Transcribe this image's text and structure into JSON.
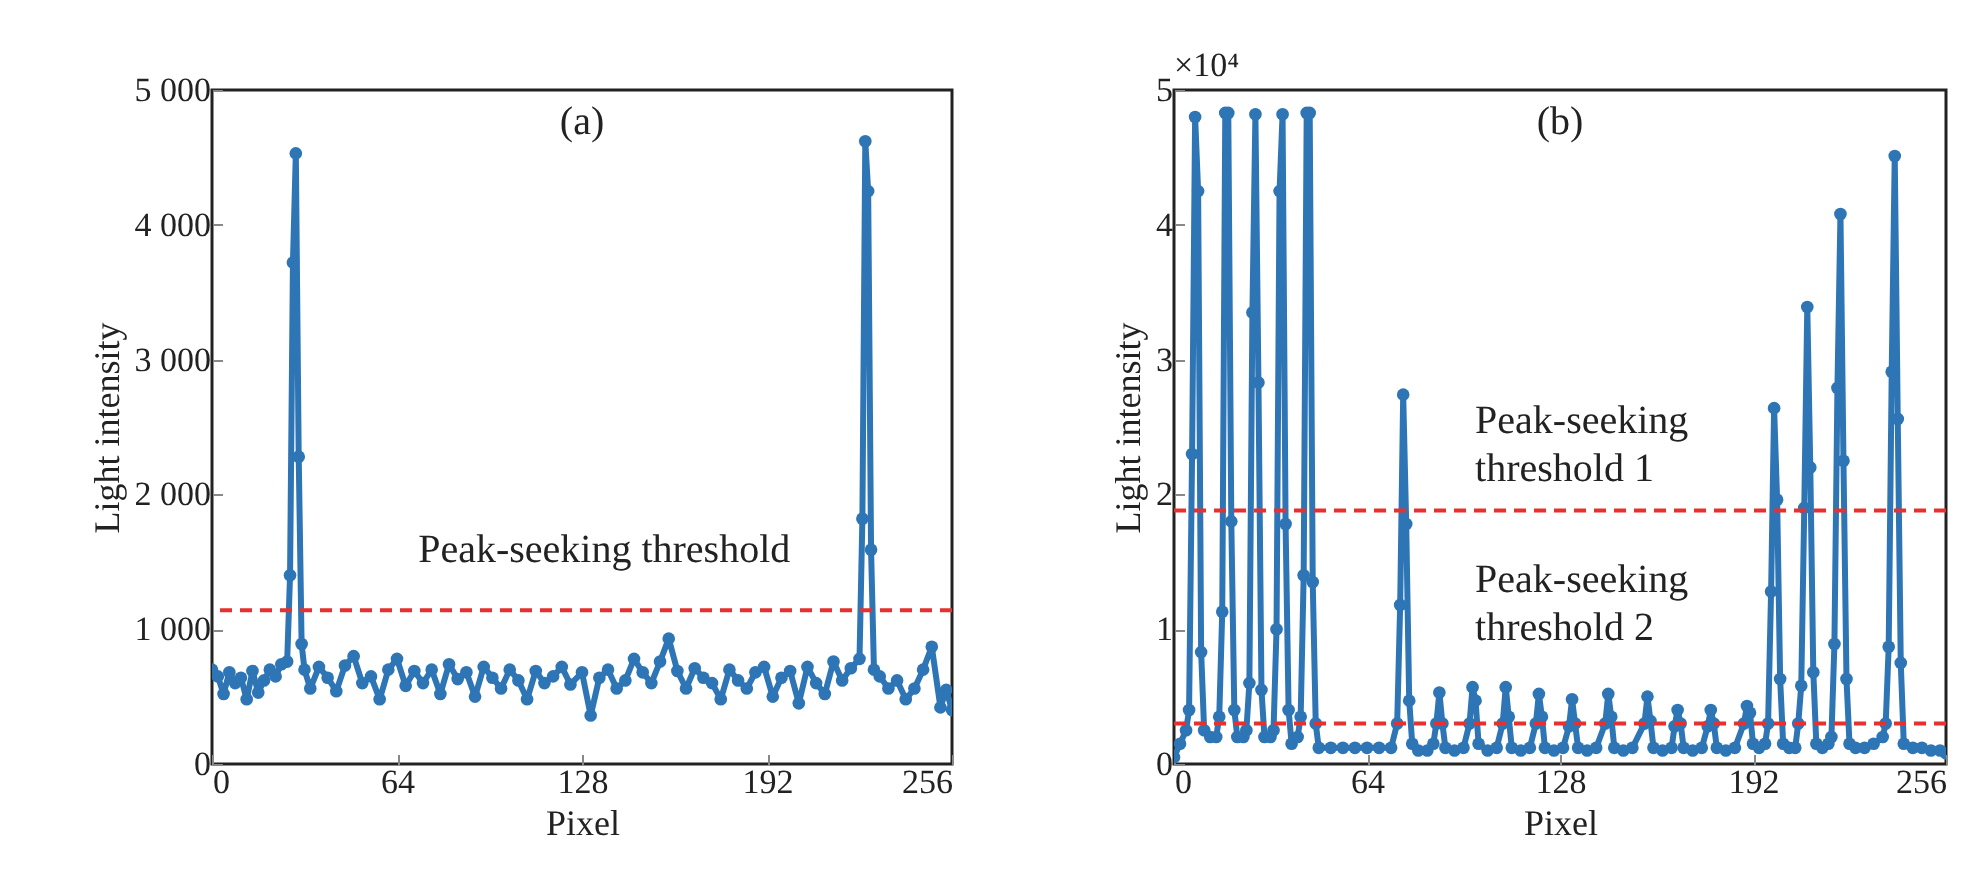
{
  "chart_data": [
    {
      "type": "line",
      "title": "(a)",
      "xlabel": "Pixel",
      "ylabel": "Light intensity",
      "marker": "circle",
      "line_style": "solid",
      "xlim": [
        0,
        256
      ],
      "xticks": [
        0,
        64,
        128,
        192,
        256
      ],
      "ylim": [
        0,
        5000
      ],
      "yticks": [
        0,
        {
          "value": 1000,
          "label": "1 000"
        },
        {
          "value": 2000,
          "label": "2 000"
        },
        {
          "value": 3000,
          "label": "3 000"
        },
        {
          "value": 4000,
          "label": "4 000"
        },
        {
          "value": 5000,
          "label": "5 000"
        }
      ],
      "series": [
        {
          "color": "#2e75b6",
          "x": [
            0,
            2,
            4,
            6,
            8,
            10,
            12,
            14,
            16,
            18,
            20,
            22,
            24,
            26,
            27,
            28,
            29,
            30,
            31,
            32,
            34,
            37,
            40,
            43,
            46,
            49,
            52,
            55,
            58,
            61,
            64,
            67,
            70,
            73,
            76,
            79,
            82,
            85,
            88,
            91,
            94,
            97,
            100,
            103,
            106,
            109,
            112,
            115,
            118,
            121,
            124,
            128,
            131,
            134,
            137,
            140,
            143,
            146,
            149,
            152,
            155,
            158,
            161,
            164,
            167,
            170,
            173,
            176,
            179,
            182,
            185,
            188,
            191,
            194,
            197,
            200,
            203,
            206,
            209,
            212,
            215,
            218,
            221,
            224,
            225,
            226,
            227,
            228,
            229,
            231,
            234,
            237,
            240,
            243,
            246,
            249,
            252,
            254,
            256
          ],
          "values": [
            700,
            650,
            520,
            680,
            600,
            640,
            480,
            690,
            530,
            620,
            700,
            650,
            740,
            760,
            1400,
            3720,
            4530,
            2280,
            890,
            700,
            560,
            720,
            640,
            540,
            730,
            800,
            600,
            650,
            480,
            700,
            780,
            580,
            690,
            600,
            700,
            520,
            740,
            630,
            680,
            500,
            720,
            640,
            560,
            700,
            620,
            480,
            690,
            600,
            650,
            720,
            590,
            680,
            360,
            640,
            700,
            560,
            620,
            780,
            680,
            600,
            760,
            930,
            690,
            560,
            710,
            640,
            600,
            480,
            700,
            620,
            560,
            680,
            720,
            500,
            640,
            690,
            450,
            720,
            600,
            520,
            760,
            620,
            710,
            780,
            1820,
            4620,
            4250,
            1590,
            700,
            650,
            560,
            620,
            480,
            560,
            700,
            870,
            420,
            550,
            400
          ]
        }
      ],
      "ref_lines": [
        {
          "axis": "y",
          "value": 1140,
          "label": "Peak-seeking threshold",
          "color": "#e8312f",
          "line_style": "dashed"
        }
      ]
    },
    {
      "type": "line",
      "title": "(b)",
      "xlabel": "Pixel",
      "ylabel": "Light intensity",
      "marker": "circle",
      "line_style": "solid",
      "annotations": [
        "×10⁴"
      ],
      "xlim": [
        0,
        256
      ],
      "xticks": [
        0,
        64,
        128,
        192,
        256
      ],
      "ylim": [
        0,
        5
      ],
      "yticks": [
        0,
        1,
        2,
        3,
        4,
        5
      ],
      "series": [
        {
          "color": "#2e75b6",
          "x": [
            0,
            2,
            4,
            5,
            6,
            7,
            8,
            9,
            10,
            12,
            14,
            15,
            16,
            17,
            18,
            19,
            20,
            21,
            23,
            24,
            25,
            26,
            27,
            28,
            29,
            30,
            32,
            33,
            34,
            35,
            36,
            37,
            38,
            39,
            41,
            42,
            43,
            44,
            45,
            46,
            47,
            48,
            52,
            56,
            60,
            64,
            68,
            72,
            74,
            75,
            76,
            77,
            78,
            79,
            81,
            84,
            86,
            87,
            88,
            89,
            90,
            93,
            96,
            98,
            99,
            100,
            101,
            104,
            107,
            109,
            110,
            111,
            112,
            115,
            118,
            120,
            121,
            122,
            123,
            126,
            129,
            131,
            132,
            133,
            134,
            137,
            140,
            143,
            144,
            145,
            146,
            149,
            152,
            156,
            157,
            158,
            159,
            162,
            165,
            166,
            167,
            168,
            169,
            172,
            175,
            177,
            178,
            179,
            180,
            183,
            186,
            189,
            190,
            191,
            192,
            194,
            196,
            197,
            198,
            199,
            200,
            201,
            202,
            204,
            206,
            207,
            208,
            209,
            210,
            211,
            212,
            213,
            215,
            217,
            218,
            219,
            220,
            221,
            222,
            223,
            224,
            226,
            229,
            232,
            235,
            236,
            237,
            238,
            239,
            240,
            241,
            242,
            245,
            248,
            251,
            254,
            256
          ],
          "values": [
            0.05,
            0.15,
            0.25,
            0.4,
            2.3,
            4.8,
            4.25,
            0.83,
            0.25,
            0.2,
            0.2,
            0.35,
            1.13,
            4.83,
            4.83,
            1.8,
            0.4,
            0.2,
            0.2,
            0.25,
            0.6,
            3.35,
            4.82,
            2.83,
            0.55,
            0.2,
            0.2,
            0.25,
            1.0,
            4.25,
            4.82,
            1.78,
            0.4,
            0.15,
            0.2,
            0.35,
            1.4,
            4.83,
            4.83,
            1.35,
            0.3,
            0.12,
            0.12,
            0.12,
            0.12,
            0.12,
            0.12,
            0.12,
            0.3,
            1.18,
            2.74,
            1.78,
            0.47,
            0.15,
            0.1,
            0.1,
            0.15,
            0.3,
            0.53,
            0.3,
            0.12,
            0.1,
            0.12,
            0.3,
            0.57,
            0.47,
            0.15,
            0.1,
            0.12,
            0.3,
            0.57,
            0.35,
            0.12,
            0.1,
            0.12,
            0.3,
            0.52,
            0.35,
            0.12,
            0.1,
            0.12,
            0.28,
            0.48,
            0.3,
            0.12,
            0.1,
            0.12,
            0.3,
            0.52,
            0.35,
            0.12,
            0.1,
            0.12,
            0.3,
            0.5,
            0.32,
            0.12,
            0.1,
            0.12,
            0.28,
            0.4,
            0.3,
            0.12,
            0.1,
            0.12,
            0.28,
            0.4,
            0.3,
            0.12,
            0.1,
            0.12,
            0.3,
            0.43,
            0.38,
            0.15,
            0.12,
            0.15,
            0.3,
            1.28,
            2.64,
            1.96,
            0.63,
            0.15,
            0.12,
            0.12,
            0.3,
            0.58,
            1.9,
            3.39,
            2.2,
            0.68,
            0.15,
            0.12,
            0.15,
            0.2,
            0.89,
            2.79,
            4.08,
            2.25,
            0.63,
            0.15,
            0.12,
            0.12,
            0.15,
            0.2,
            0.3,
            0.87,
            2.91,
            4.51,
            2.56,
            0.75,
            0.15,
            0.12,
            0.12,
            0.1,
            0.1,
            0.08
          ]
        }
      ],
      "ref_lines": [
        {
          "axis": "y",
          "value": 1.88,
          "label": "Peak-seeking threshold 1",
          "color": "#e8312f",
          "line_style": "dashed"
        },
        {
          "axis": "y",
          "value": 0.3,
          "label": "Peak-seeking threshold 2",
          "color": "#e8312f",
          "line_style": "dashed"
        }
      ]
    }
  ]
}
